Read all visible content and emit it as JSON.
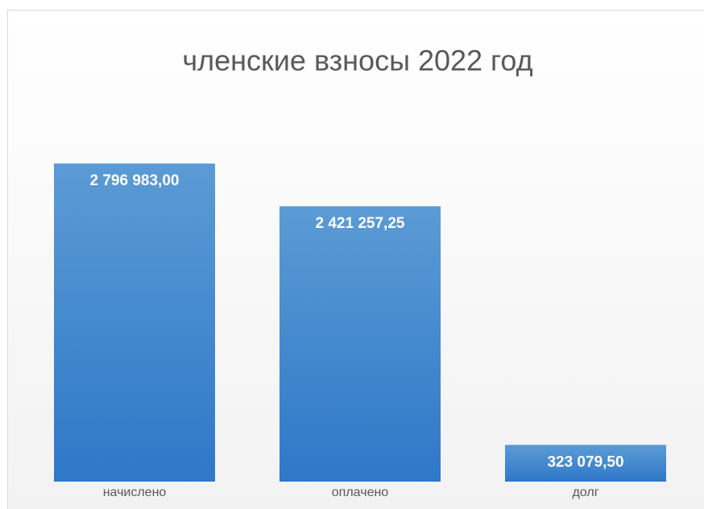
{
  "chart_data": {
    "type": "bar",
    "title": "членские взносы 2022 год",
    "categories": [
      "начислено",
      "оплачено",
      "долг"
    ],
    "values": [
      2796983.0,
      2421257.25,
      323079.5
    ],
    "value_labels": [
      "2 796 983,00",
      "2 421 257,25",
      "323 079,50"
    ],
    "color": "#4a8ad4",
    "ylim": [
      0,
      3000000
    ]
  }
}
